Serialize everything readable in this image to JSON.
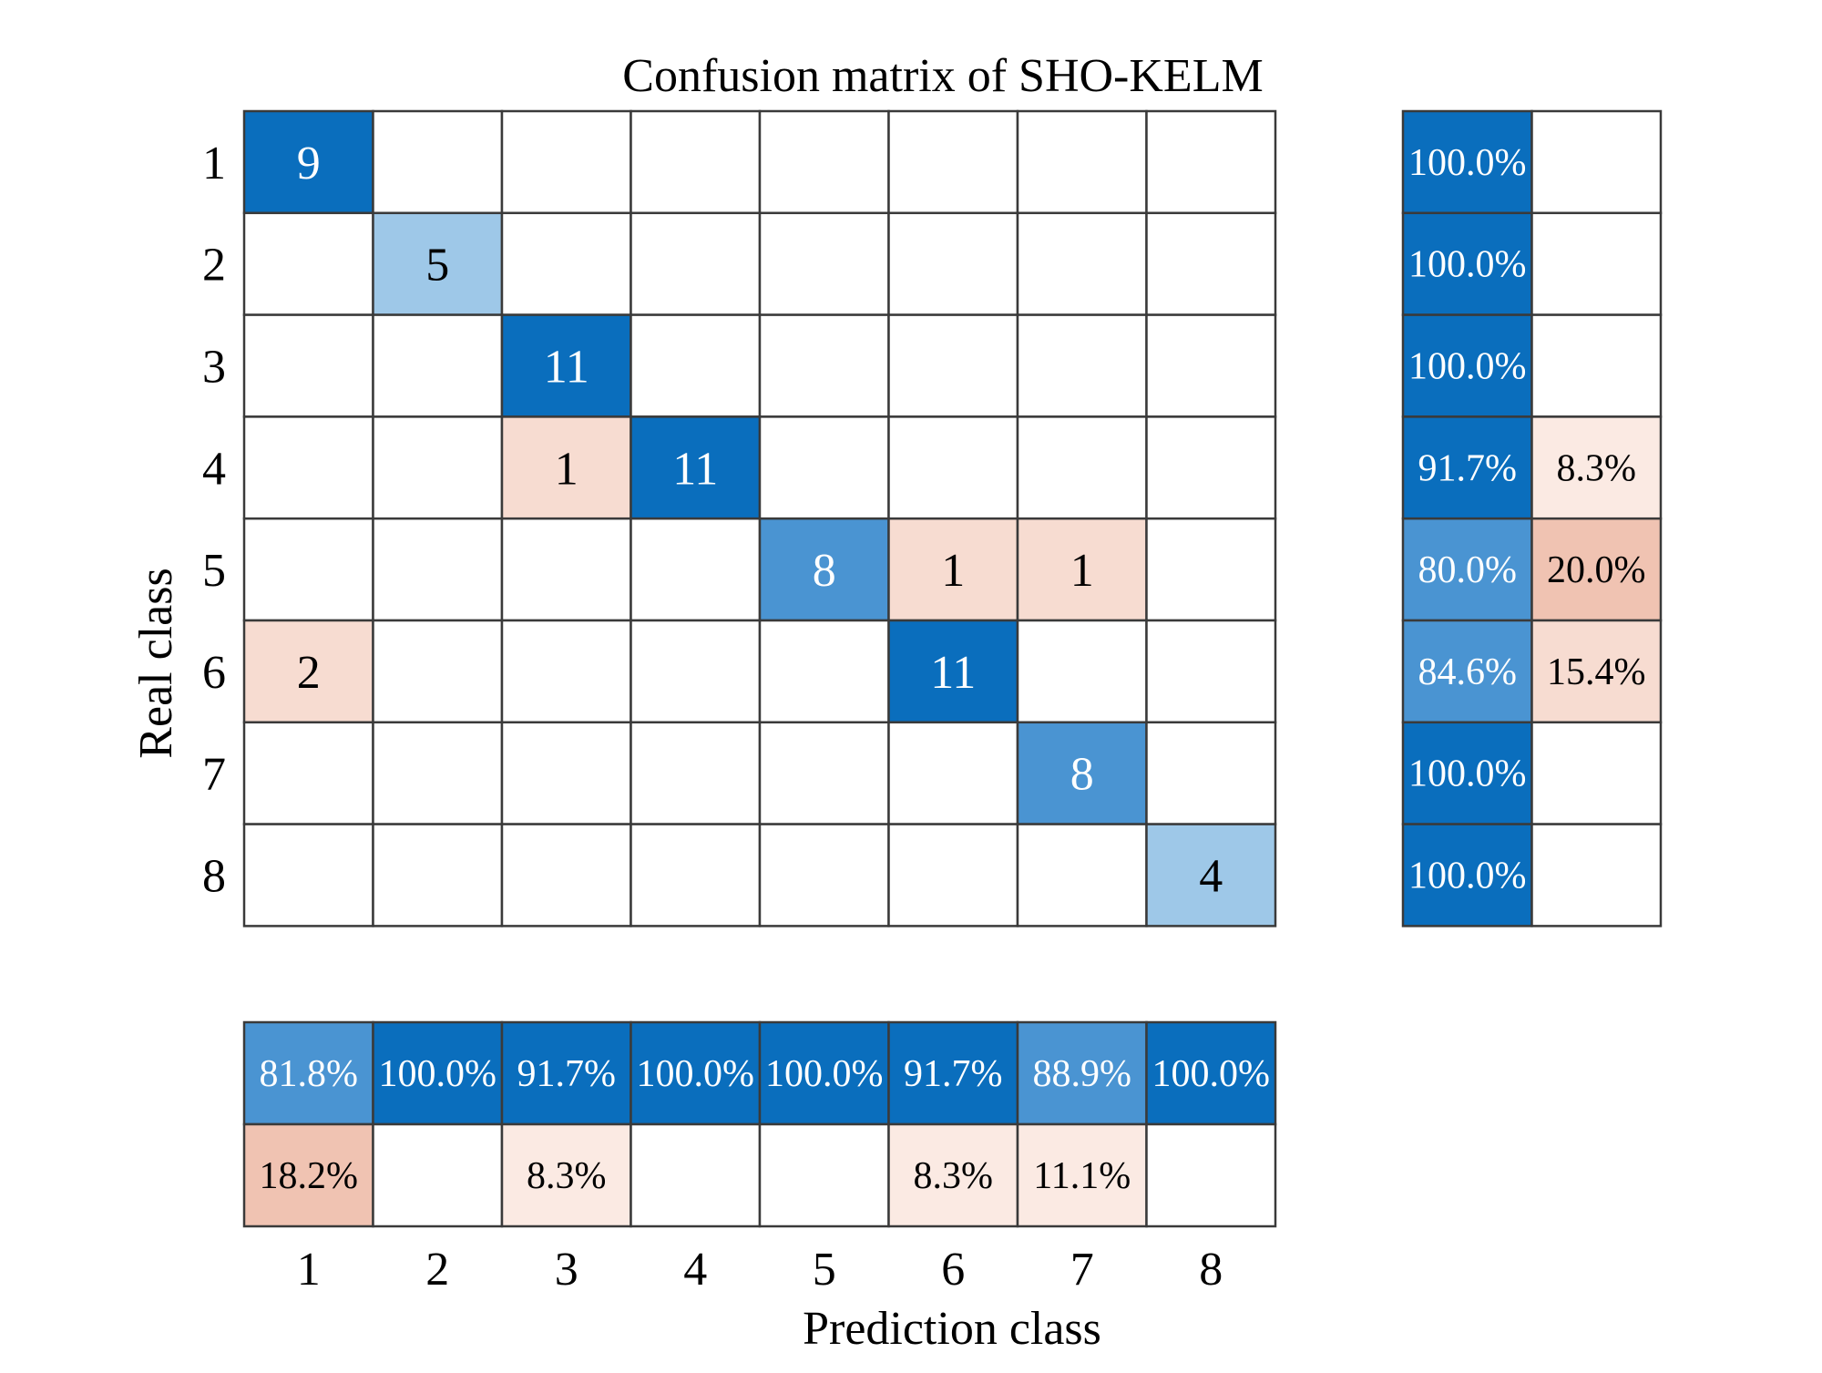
{
  "chart_data": {
    "type": "heatmap",
    "title": "Confusion matrix of SHO-KELM",
    "xlabel": "Prediction class",
    "ylabel": "Real class",
    "classes": [
      "1",
      "2",
      "3",
      "4",
      "5",
      "6",
      "7",
      "8"
    ],
    "matrix": [
      [
        9,
        0,
        0,
        0,
        0,
        0,
        0,
        0
      ],
      [
        0,
        5,
        0,
        0,
        0,
        0,
        0,
        0
      ],
      [
        0,
        0,
        11,
        0,
        0,
        0,
        0,
        0
      ],
      [
        0,
        0,
        1,
        11,
        0,
        0,
        0,
        0
      ],
      [
        0,
        0,
        0,
        0,
        8,
        1,
        1,
        0
      ],
      [
        2,
        0,
        0,
        0,
        0,
        11,
        0,
        0
      ],
      [
        0,
        0,
        0,
        0,
        0,
        0,
        8,
        0
      ],
      [
        0,
        0,
        0,
        0,
        0,
        0,
        0,
        4
      ]
    ],
    "row_summary": {
      "correct": [
        "100.0%",
        "100.0%",
        "100.0%",
        "91.7%",
        "80.0%",
        "84.6%",
        "100.0%",
        "100.0%"
      ],
      "incorrect": [
        "",
        "",
        "",
        "8.3%",
        "20.0%",
        "15.4%",
        "",
        ""
      ]
    },
    "column_summary": {
      "correct": [
        "81.8%",
        "100.0%",
        "91.7%",
        "100.0%",
        "100.0%",
        "91.7%",
        "88.9%",
        "100.0%"
      ],
      "incorrect": [
        "18.2%",
        "",
        "8.3%",
        "",
        "",
        "8.3%",
        "11.1%",
        ""
      ]
    },
    "colors": {
      "blue_dark": "#0a6ebd",
      "blue_mid": "#4a94d2",
      "blue_light": "#9ec8e8",
      "red_lightest": "#fbeae3",
      "red_light": "#f7dcd1",
      "red_mid": "#f0c3b2",
      "grid": "#3a3a3a"
    }
  }
}
